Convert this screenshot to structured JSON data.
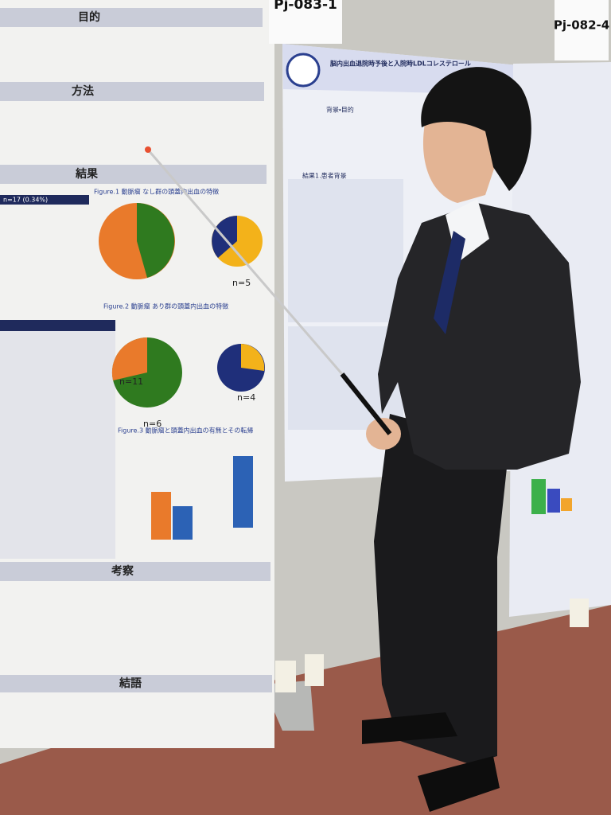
{
  "left_poster": {
    "sections": [
      "目的",
      "方法",
      "結果",
      "考察",
      "結語"
    ],
    "table_header": "n=17 (0.34%)",
    "figures": [
      "Figure.1 動脈瘤 なし群の頭蓋内出血の特徴",
      "Figure.2 動脈瘤 あり群の頭蓋内出血の特徴",
      "Figure.3 動脈瘤と頭蓋内出血の有無とその転帰"
    ],
    "pie_labels": [
      "n=5",
      "n=11",
      "n=6",
      "n=4"
    ]
  },
  "center_poster": {
    "id": "Pj-083-1",
    "title": "脳内出血退院時予後と入院時LDLコレステロール",
    "section": "背景・目的",
    "table_title": "結果1.患者背景"
  },
  "right_poster": {
    "id": "Pj-082-4"
  }
}
